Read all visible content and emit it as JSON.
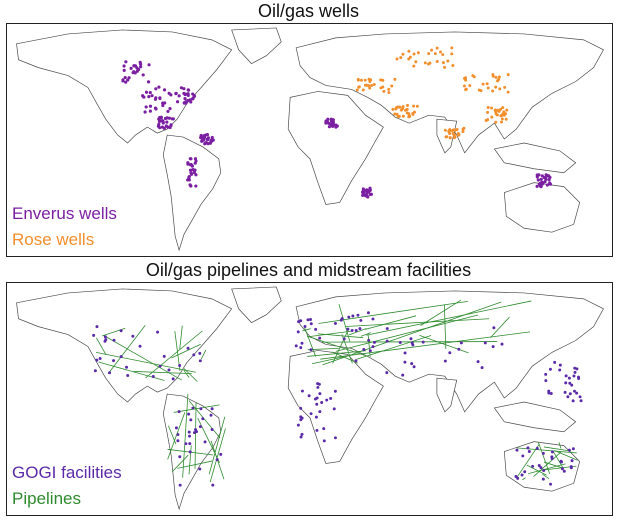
{
  "panels": [
    {
      "title": "Oil/gas wells",
      "legend": [
        {
          "label": "Enverus wells",
          "color": "#7b1fa2"
        },
        {
          "label": "Rose wells",
          "color": "#f28e2b"
        }
      ]
    },
    {
      "title": "Oil/gas pipelines and midstream facilities",
      "legend": [
        {
          "label": "GOGI facilities",
          "color": "#5b2aa8"
        },
        {
          "label": "Pipelines",
          "color": "#2e8b2e"
        }
      ]
    }
  ]
}
